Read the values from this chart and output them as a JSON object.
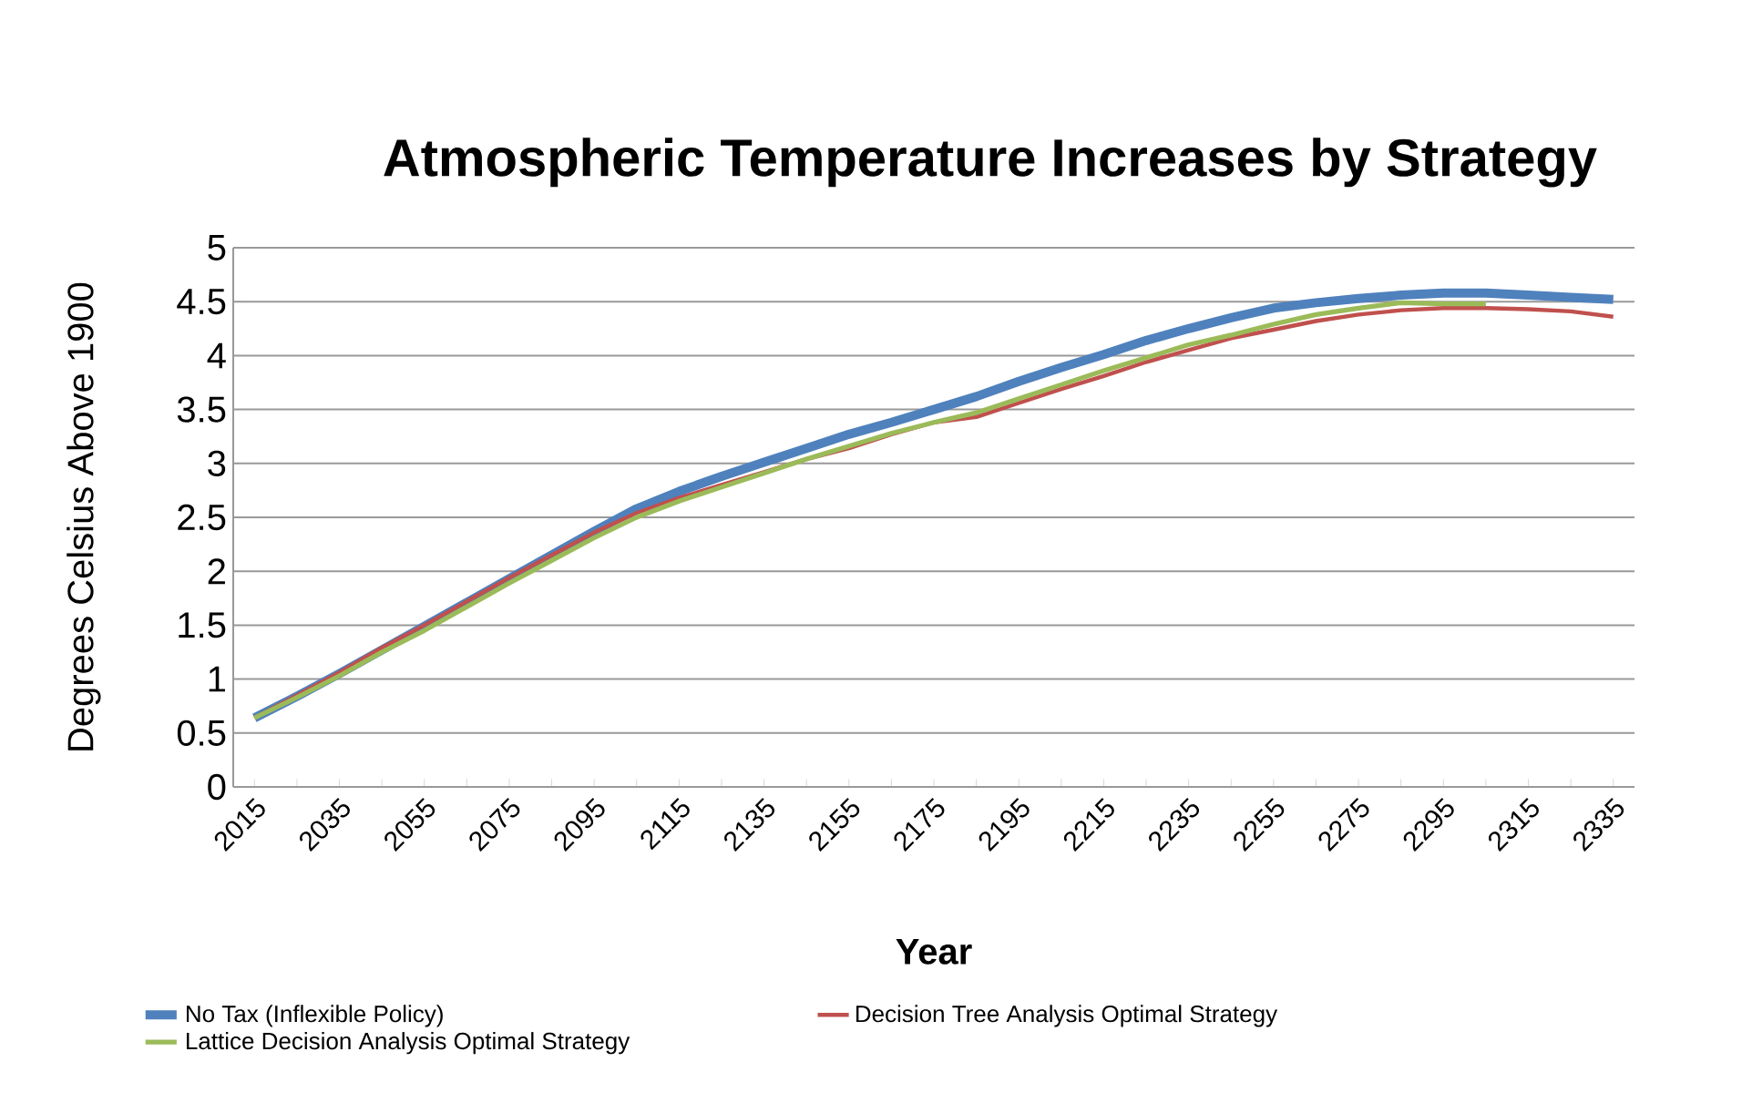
{
  "chart_data": {
    "type": "line",
    "title": "Atmospheric Temperature Increases by Strategy",
    "xlabel": "Year",
    "ylabel": "Degrees Celsius Above 1900",
    "categories": [
      "2015",
      null,
      "2035",
      null,
      "2055",
      null,
      "2075",
      null,
      "2095",
      null,
      "2115",
      null,
      "2135",
      null,
      "2155",
      null,
      "2175",
      null,
      "2195",
      null,
      "2215",
      null,
      "2235",
      null,
      "2255",
      null,
      "2275",
      null,
      "2295",
      null,
      "2315",
      null,
      "2335"
    ],
    "series": [
      {
        "name": "No Tax (Inflexible Policy)",
        "color": "#4f81bd",
        "values": [
          0.64,
          0.84,
          1.05,
          1.27,
          1.49,
          1.71,
          1.93,
          2.15,
          2.37,
          2.58,
          2.74,
          2.88,
          3.01,
          3.14,
          3.27,
          3.38,
          3.5,
          3.62,
          3.76,
          3.89,
          4.01,
          4.14,
          4.25,
          4.35,
          4.44,
          4.49,
          4.53,
          4.56,
          4.58,
          4.58,
          4.56,
          4.54,
          4.52
        ]
      },
      {
        "name": "Decision Tree Analysis Optimal Strategy",
        "color": "#c0504d",
        "values": [
          0.64,
          0.85,
          1.06,
          1.29,
          1.5,
          1.72,
          1.94,
          2.15,
          2.36,
          2.54,
          2.68,
          2.8,
          2.92,
          3.04,
          3.14,
          3.27,
          3.38,
          3.43,
          3.56,
          3.69,
          3.81,
          3.94,
          4.05,
          4.16,
          4.24,
          4.32,
          4.38,
          4.42,
          4.44,
          4.44,
          4.43,
          4.41,
          4.36
        ]
      },
      {
        "name": "Lattice Decision Analysis Optimal Strategy",
        "color": "#9bbb59",
        "values": [
          0.64,
          0.83,
          1.03,
          1.25,
          1.45,
          1.67,
          1.89,
          2.1,
          2.31,
          2.5,
          2.65,
          2.78,
          2.91,
          3.04,
          3.16,
          3.28,
          3.38,
          3.47,
          3.6,
          3.73,
          3.86,
          3.98,
          4.1,
          4.19,
          4.29,
          4.38,
          4.44,
          4.49,
          4.48,
          4.48,
          null,
          null,
          null
        ]
      }
    ],
    "ylim": [
      0,
      5
    ],
    "yticks": [
      0,
      0.5,
      1,
      1.5,
      2,
      2.5,
      3,
      3.5,
      4,
      4.5,
      5
    ],
    "grid": "y",
    "legend": "bottom"
  }
}
